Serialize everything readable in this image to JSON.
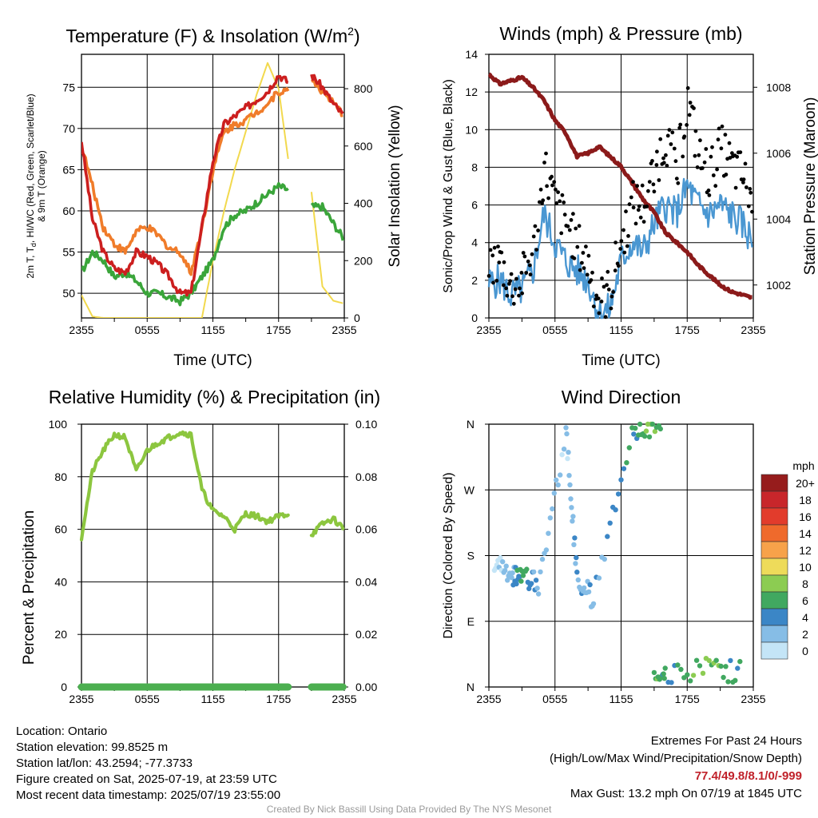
{
  "chart_data": [
    {
      "type": "line",
      "title": "Temperature (F) & Insolation (W/m²)",
      "xlabel": "Time (UTC)",
      "ylabel": "2m T, Td, HI/WC (Red, Green, Scarlet/Blue) & 9m T (Orange)",
      "ylabel_line1": "2m T, T",
      "ylabel_sub": "d",
      "ylabel_line1_rest": ", HI/WC (Red, Green, Scarlet/Blue)",
      "ylabel_line2": "& 9m T (Orange)",
      "y2label": "Solar Insolation (Yellow)",
      "title_main": "Temperature (F) & Insolation (W/m",
      "title_sup": "2",
      "title_end": ")",
      "xticks": [
        "2355",
        "0555",
        "1155",
        "1755",
        "2355"
      ],
      "ylim": [
        47,
        79
      ],
      "yticks": [
        50,
        55,
        60,
        65,
        70,
        75
      ],
      "y2lim": [
        0,
        920
      ],
      "y2ticks": [
        0,
        200,
        400,
        600,
        800
      ],
      "x": [
        0,
        1,
        2,
        3,
        4,
        5,
        6,
        7,
        8,
        9,
        10,
        11,
        12,
        13,
        14,
        15,
        16,
        17,
        18,
        19,
        20,
        21,
        22,
        23,
        24
      ],
      "series": [
        {
          "name": "2m T",
          "color": "#cc1f1f",
          "axis": "left",
          "values": [
            68.5,
            59,
            55,
            53,
            52.5,
            55,
            54.5,
            53.5,
            52,
            50,
            50,
            58,
            66,
            70.5,
            71.5,
            72.5,
            73.5,
            74.5,
            76.5,
            75.5,
            null,
            76.5,
            75,
            73,
            71.5
          ]
        },
        {
          "name": "9m T",
          "color": "#f07c2a",
          "axis": "left",
          "values": [
            68,
            63,
            58,
            56,
            55,
            57.5,
            58,
            57,
            55.5,
            55,
            52.5,
            58,
            65,
            69.5,
            70.5,
            71,
            72,
            73,
            74.5,
            74.5,
            null,
            76,
            74.5,
            73,
            71.5
          ]
        },
        {
          "name": "Td",
          "color": "#3aa53a",
          "axis": "left",
          "values": [
            52.5,
            55,
            54,
            52,
            52.5,
            51.5,
            50,
            50,
            49.5,
            49,
            50,
            52,
            54,
            58,
            59.5,
            60,
            61,
            62,
            63,
            62.5,
            null,
            60.5,
            60.5,
            58.5,
            56.5
          ]
        },
        {
          "name": "Insolation",
          "color": "#f2d94e",
          "axis": "right",
          "values": [
            80,
            5,
            0,
            0,
            0,
            0,
            0,
            0,
            0,
            0,
            0,
            0,
            200,
            370,
            520,
            650,
            780,
            890,
            800,
            520,
            null,
            440,
            110,
            60,
            50
          ]
        }
      ]
    },
    {
      "type": "line",
      "title": "Winds (mph) & Pressure (mb)",
      "xlabel": "Time (UTC)",
      "ylabel": "Sonic/Prop Wind & Gust (Blue, Black)",
      "y2label": "Station Pressure (Maroon)",
      "xticks": [
        "2355",
        "0555",
        "1155",
        "1755",
        "2355"
      ],
      "ylim": [
        0,
        14
      ],
      "yticks": [
        0,
        2,
        4,
        6,
        8,
        10,
        12,
        14
      ],
      "y2lim": [
        1001.0,
        1009.0
      ],
      "y2ticks": [
        1002,
        1004,
        1006,
        1008
      ],
      "x": [
        0,
        1,
        2,
        3,
        4,
        5,
        6,
        7,
        8,
        9,
        10,
        11,
        12,
        13,
        14,
        15,
        16,
        17,
        18,
        19,
        20,
        21,
        22,
        23,
        24
      ],
      "series": [
        {
          "name": "Wind",
          "color": "#4a97d2",
          "axis": "left",
          "values": [
            1.8,
            2,
            1.2,
            1.5,
            2.5,
            5.5,
            4,
            3,
            2.5,
            2,
            0.2,
            0.5,
            3,
            4,
            3.5,
            5,
            6,
            5.5,
            7,
            6,
            5.5,
            6,
            5.5,
            5,
            4
          ]
        },
        {
          "name": "Gust",
          "color": "#000000",
          "kind": "points",
          "axis": "left",
          "values": [
            2.8,
            3,
            1.6,
            2,
            3.5,
            8,
            6,
            5,
            3.8,
            2.8,
            0.8,
            1.5,
            4,
            6,
            6,
            8,
            9.5,
            8,
            11.5,
            8.5,
            7.5,
            9,
            8,
            7.5,
            6
          ]
        },
        {
          "name": "Pressure",
          "color": "#8b1a1a",
          "axis": "right",
          "values": [
            1008.4,
            1008.1,
            1008.2,
            1008.3,
            1008.0,
            1007.6,
            1007.0,
            1006.6,
            1005.9,
            1006.0,
            1006.2,
            1005.9,
            1005.6,
            1005.1,
            1004.6,
            1004.2,
            1003.6,
            1003.3,
            1003.0,
            1002.6,
            1002.3,
            1002.0,
            1001.8,
            1001.7,
            1001.6
          ]
        }
      ]
    },
    {
      "type": "line",
      "title": "Relative Humidity (%) & Precipitation (in)",
      "xlabel": "",
      "ylabel": "Percent & Precipitation",
      "xticks": [
        "2355",
        "0555",
        "1155",
        "1755",
        "2355"
      ],
      "ylim": [
        0,
        100
      ],
      "yticks": [
        0,
        20,
        40,
        60,
        80,
        100
      ],
      "y2lim": [
        0,
        0.1
      ],
      "y2ticks": [
        "0.00",
        "0.02",
        "0.04",
        "0.06",
        "0.08",
        "0.10"
      ],
      "x": [
        0,
        1,
        2,
        3,
        4,
        5,
        6,
        7,
        8,
        9,
        10,
        11,
        12,
        13,
        14,
        15,
        16,
        17,
        18,
        19,
        20,
        21,
        22,
        23,
        24
      ],
      "series": [
        {
          "name": "RH",
          "color": "#8cc63f",
          "axis": "left",
          "values": [
            57,
            82,
            90,
            96,
            95,
            82,
            90,
            93,
            95,
            97,
            96,
            75,
            67,
            65,
            60,
            66,
            65,
            63,
            65,
            66,
            null,
            58,
            62,
            64,
            60
          ]
        },
        {
          "name": "Precip",
          "color": "#4caf50",
          "axis": "right",
          "values": [
            0,
            0,
            0,
            0,
            0,
            0,
            0,
            0,
            0,
            0,
            0,
            0,
            0,
            0,
            0,
            0,
            0,
            0,
            0,
            0,
            null,
            0,
            0,
            0,
            0
          ]
        }
      ]
    },
    {
      "type": "scatter",
      "title": "Wind Direction",
      "xlabel": "",
      "ylabel": "Direction (Colored By Speed)",
      "xticks": [
        "2355",
        "0555",
        "1155",
        "1755",
        "2355"
      ],
      "yticks": [
        "N",
        "E",
        "S",
        "W",
        "N"
      ],
      "ylim": [
        0,
        360
      ],
      "legend": {
        "title": "mph",
        "labels": [
          "20+",
          "18",
          "16",
          "14",
          "12",
          "10",
          "8",
          "6",
          "4",
          "2",
          "0"
        ],
        "colors": [
          "#961c1c",
          "#c8262b",
          "#e23c2c",
          "#ef6a2c",
          "#f7a24a",
          "#eedb5a",
          "#8ccc52",
          "#41a860",
          "#3b86c6",
          "#86bde6",
          "#c4e5f7"
        ]
      },
      "points_summary": [
        {
          "hour": 0.5,
          "dir": 170,
          "speed": 1
        },
        {
          "hour": 2,
          "dir": 150,
          "speed": 2
        },
        {
          "hour": 3,
          "dir": 155,
          "speed": 6
        },
        {
          "hour": 4.5,
          "dir": 140,
          "speed": 2
        },
        {
          "hour": 7,
          "dir": 350,
          "speed": 1
        },
        {
          "hour": 8,
          "dir": 150,
          "speed": 3
        },
        {
          "hour": 9.5,
          "dir": 120,
          "speed": 2
        },
        {
          "hour": 13,
          "dir": 355,
          "speed": 5
        },
        {
          "hour": 15,
          "dir": 355,
          "speed": 7
        },
        {
          "hour": 16,
          "dir": 15,
          "speed": 5
        },
        {
          "hour": 20,
          "dir": 25,
          "speed": 7
        },
        {
          "hour": 23,
          "dir": 20,
          "speed": 5
        }
      ]
    }
  ],
  "footer": {
    "location": "Location: Ontario",
    "elevation": "Station elevation: 99.8525 m",
    "latlon": "Station lat/lon: 43.2594; -77.3733",
    "created": "Figure created on Sat, 2025-07-19, at 23:59 UTC",
    "recent": "Most recent data timestamp: 2025/07/19 23:55:00",
    "extremes_title": "Extremes For Past 24 Hours",
    "extremes_fields": "(High/Low/Max Wind/Precipitation/Snow Depth)",
    "extremes_values": "77.4/49.8/8.1/0/-999",
    "max_gust": "Max Gust: 13.2 mph On 07/19 at 1845 UTC",
    "credit": "Created By Nick Bassill Using Data Provided By The NYS Mesonet"
  }
}
